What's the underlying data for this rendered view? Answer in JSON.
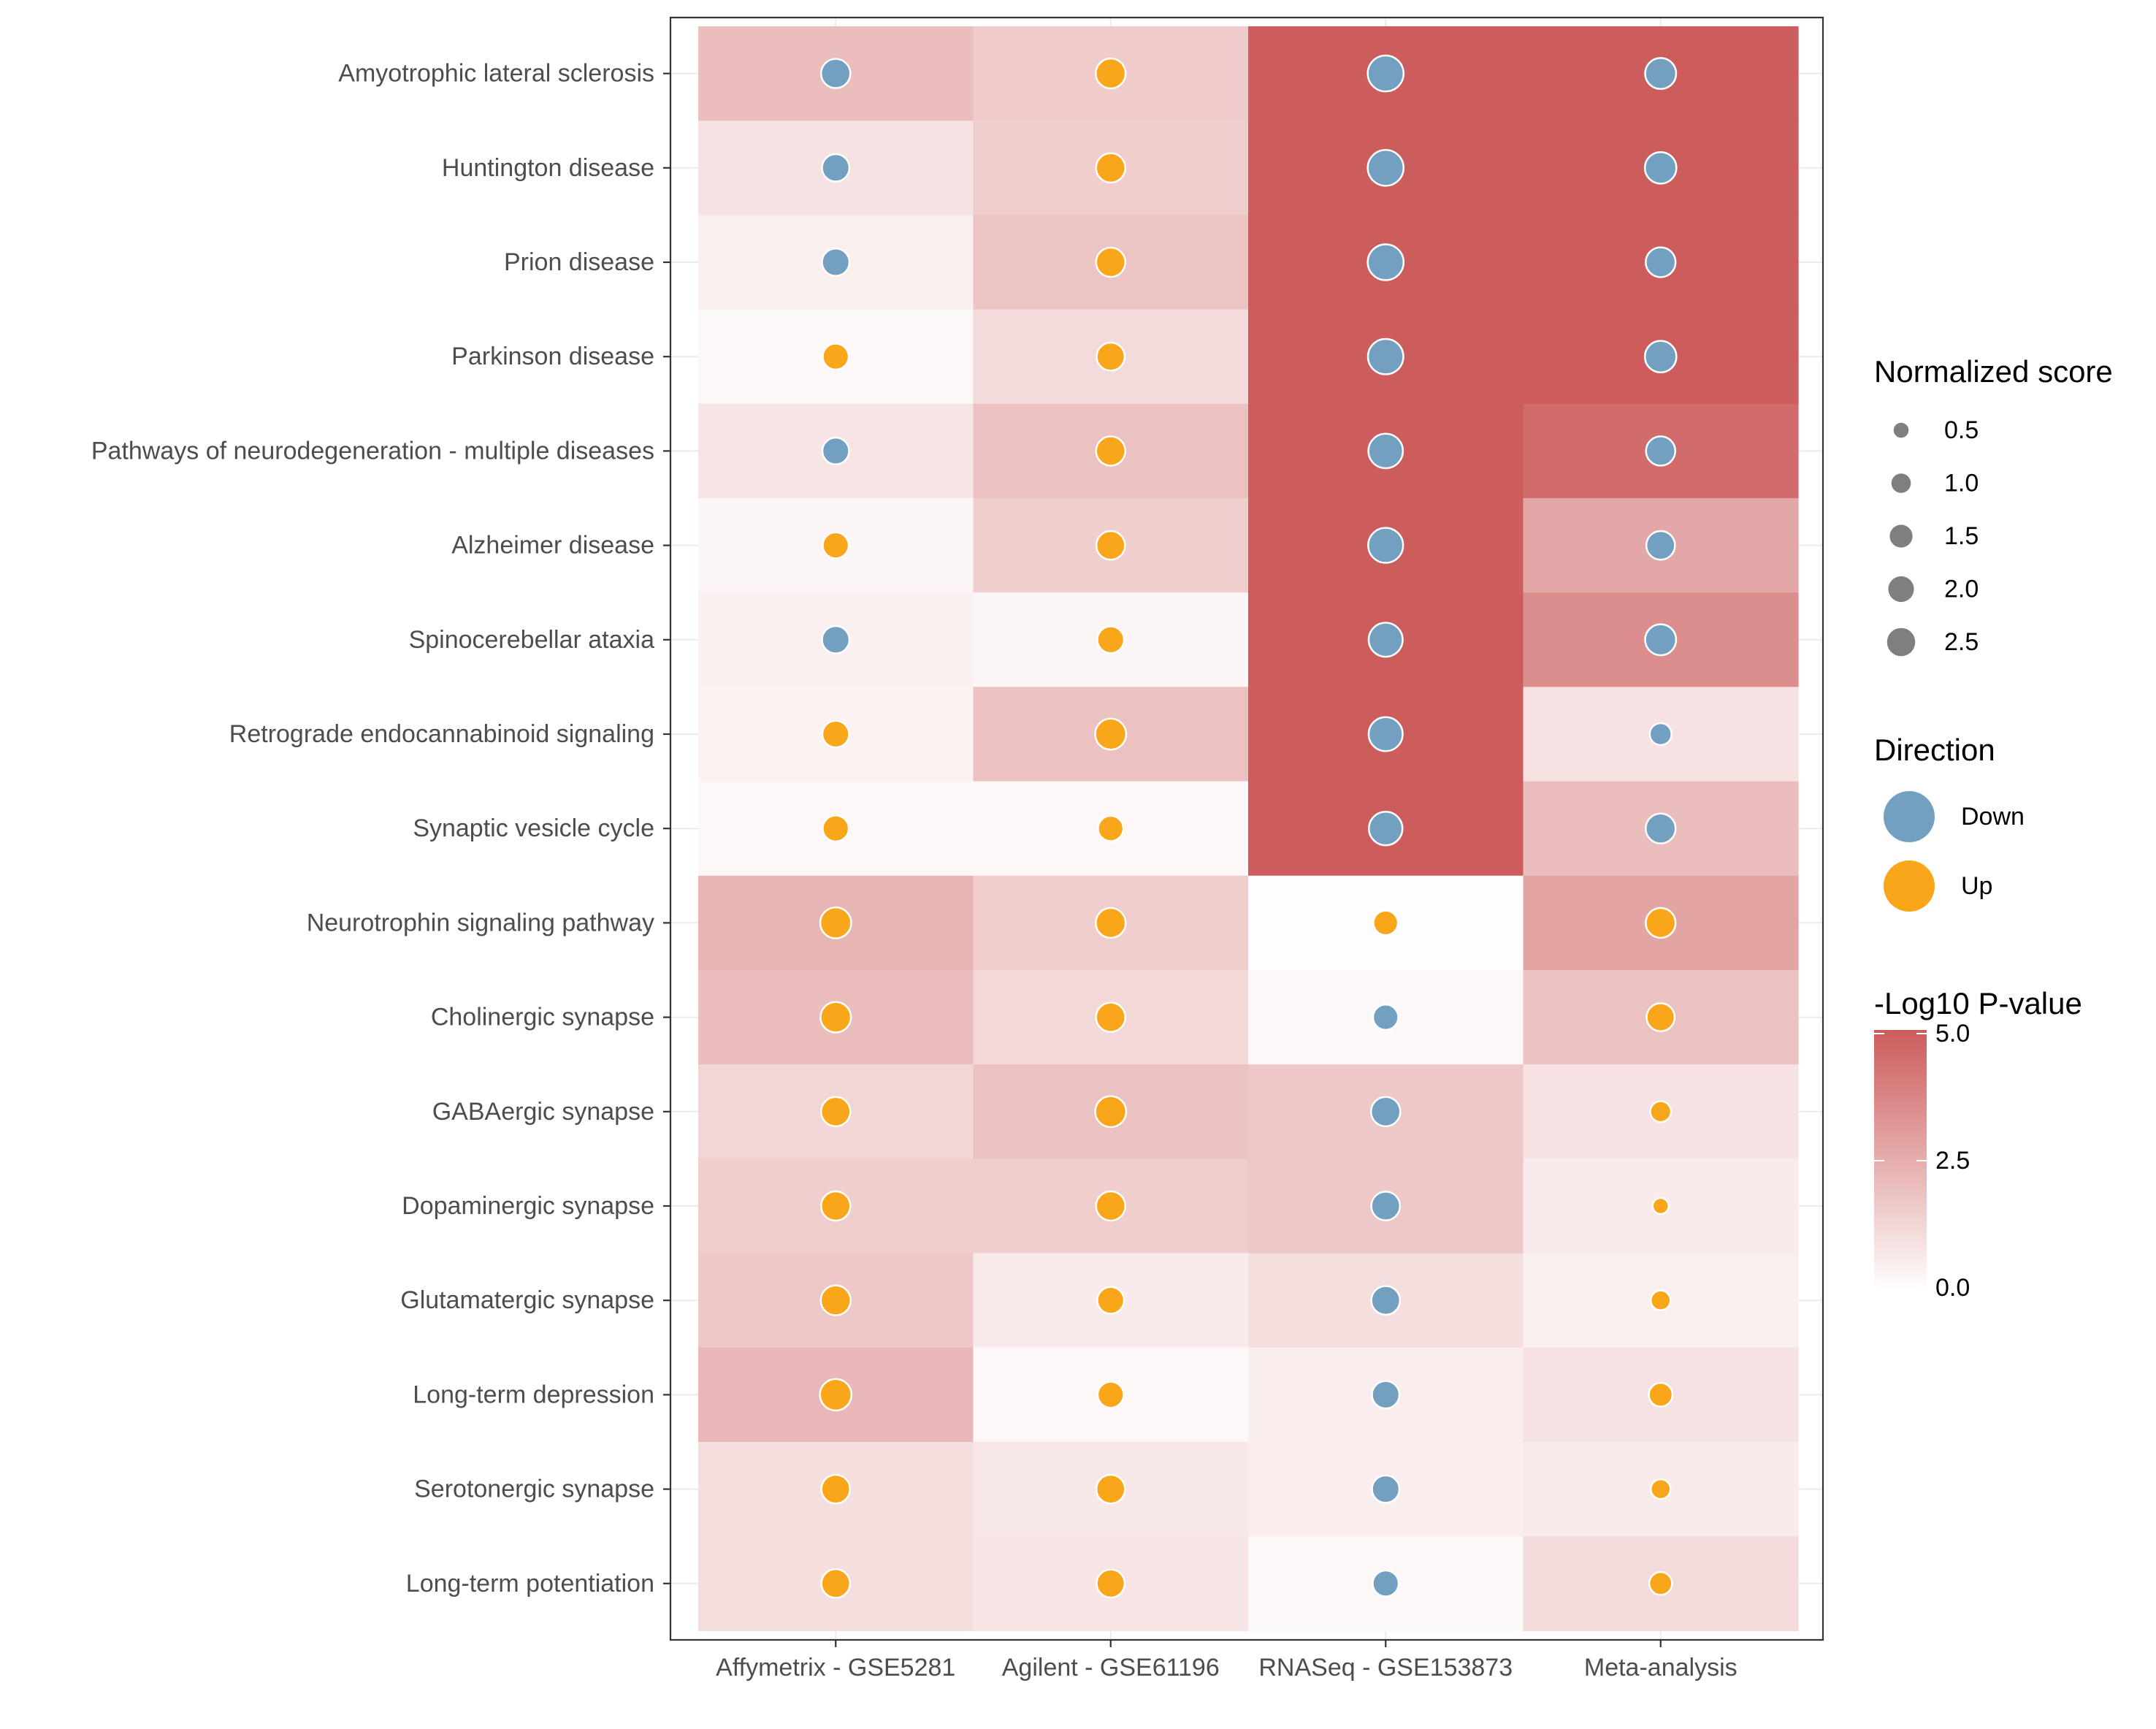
{
  "chart_data": {
    "type": "heatmap",
    "title": "",
    "xlabel": "",
    "ylabel": "",
    "x_categories": [
      "Affymetrix - GSE5281",
      "Agilent - GSE61196",
      "RNASeq - GSE153873",
      "Meta-analysis"
    ],
    "y_categories": [
      "Amyotrophic lateral sclerosis",
      "Huntington disease",
      "Prion disease",
      "Parkinson disease",
      "Pathways of neurodegeneration - multiple diseases",
      "Alzheimer disease",
      "Spinocerebellar ataxia",
      "Retrograde endocannabinoid signaling",
      "Synaptic vesicle cycle",
      "Neurotrophin signaling pathway",
      "Cholinergic synapse",
      "GABAergic synapse",
      "Dopaminergic synapse",
      "Glutamatergic synapse",
      "Long-term depression",
      "Serotonergic synapse",
      "Long-term potentiation"
    ],
    "neg_log10_pvalue": [
      [
        2.0,
        1.6,
        5.0,
        5.0
      ],
      [
        0.9,
        1.5,
        5.0,
        5.0
      ],
      [
        0.5,
        1.8,
        5.0,
        5.0
      ],
      [
        0.2,
        1.1,
        5.0,
        5.0
      ],
      [
        0.8,
        1.9,
        5.0,
        4.5
      ],
      [
        0.3,
        1.5,
        5.0,
        2.7
      ],
      [
        0.45,
        0.3,
        5.0,
        3.5
      ],
      [
        0.4,
        1.9,
        5.0,
        0.9
      ],
      [
        0.25,
        0.25,
        5.0,
        2.0
      ],
      [
        2.3,
        1.5,
        0.1,
        2.8
      ],
      [
        2.0,
        1.2,
        0.2,
        1.9
      ],
      [
        1.3,
        1.9,
        1.7,
        0.9
      ],
      [
        1.5,
        1.5,
        1.7,
        0.6
      ],
      [
        1.7,
        0.6,
        1.0,
        0.5
      ],
      [
        2.2,
        0.25,
        0.55,
        0.9
      ],
      [
        1.0,
        0.75,
        0.55,
        0.6
      ],
      [
        1.0,
        0.8,
        0.2,
        1.1
      ]
    ],
    "normalized_score": [
      [
        1.6,
        1.7,
        2.9,
        1.9
      ],
      [
        1.3,
        1.6,
        2.9,
        2.0
      ],
      [
        1.3,
        1.6,
        2.9,
        1.7
      ],
      [
        1.1,
        1.4,
        2.8,
        2.0
      ],
      [
        1.2,
        1.6,
        2.6,
        1.6
      ],
      [
        1.1,
        1.5,
        2.7,
        1.5
      ],
      [
        1.3,
        1.2,
        2.5,
        1.9
      ],
      [
        1.2,
        1.9,
        2.5,
        0.6
      ],
      [
        1.1,
        1.0,
        2.4,
        1.7
      ],
      [
        1.9,
        1.7,
        0.9,
        1.7
      ],
      [
        1.8,
        1.6,
        1.0,
        1.4
      ],
      [
        1.6,
        1.9,
        1.6,
        0.5
      ],
      [
        1.6,
        1.6,
        1.5,
        0.15
      ],
      [
        1.7,
        1.2,
        1.5,
        0.4
      ],
      [
        2.0,
        1.1,
        1.3,
        0.8
      ],
      [
        1.5,
        1.5,
        1.3,
        0.4
      ],
      [
        1.5,
        1.4,
        1.1,
        0.7
      ]
    ],
    "direction": [
      [
        "Down",
        "Up",
        "Down",
        "Down"
      ],
      [
        "Down",
        "Up",
        "Down",
        "Down"
      ],
      [
        "Down",
        "Up",
        "Down",
        "Down"
      ],
      [
        "Up",
        "Up",
        "Down",
        "Down"
      ],
      [
        "Down",
        "Up",
        "Down",
        "Down"
      ],
      [
        "Up",
        "Up",
        "Down",
        "Down"
      ],
      [
        "Down",
        "Up",
        "Down",
        "Down"
      ],
      [
        "Up",
        "Up",
        "Down",
        "Down"
      ],
      [
        "Up",
        "Up",
        "Down",
        "Down"
      ],
      [
        "Up",
        "Up",
        "Up",
        "Up"
      ],
      [
        "Up",
        "Up",
        "Down",
        "Up"
      ],
      [
        "Up",
        "Up",
        "Down",
        "Up"
      ],
      [
        "Up",
        "Up",
        "Down",
        "Up"
      ],
      [
        "Up",
        "Up",
        "Down",
        "Up"
      ],
      [
        "Up",
        "Up",
        "Down",
        "Up"
      ],
      [
        "Up",
        "Up",
        "Down",
        "Up"
      ],
      [
        "Up",
        "Up",
        "Down",
        "Up"
      ]
    ],
    "color_scale": {
      "low": "#ffffff",
      "high": "#cd5c5c",
      "limits": [
        0,
        5
      ]
    },
    "direction_colors": {
      "Down": "#739fc1",
      "Up": "#f9a61b"
    },
    "legends": {
      "size": {
        "title": "Normalized score",
        "breaks": [
          0.5,
          1.0,
          1.5,
          2.0,
          2.5
        ],
        "labels": [
          "0.5",
          "1.0",
          "1.5",
          "2.0",
          "2.5"
        ]
      },
      "direction": {
        "title": "Direction",
        "labels": [
          "Down",
          "Up"
        ]
      },
      "fill": {
        "title": "-Log10 P-value",
        "breaks": [
          0,
          2.5,
          5
        ],
        "labels": [
          "0.0",
          "2.5",
          "5.0"
        ]
      }
    },
    "grid": true,
    "legend_position": "right"
  }
}
